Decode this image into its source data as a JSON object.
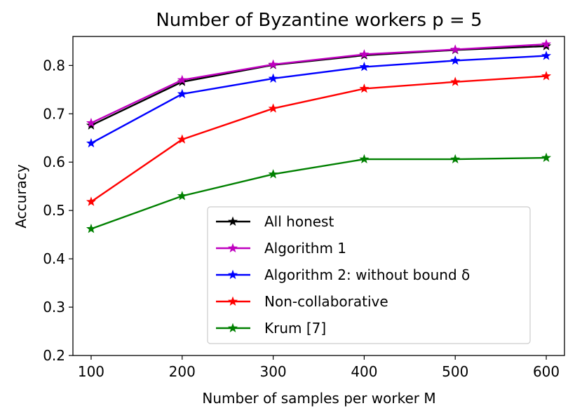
{
  "chart_data": {
    "type": "line",
    "title": "Number of Byzantine workers p = 5",
    "xlabel": "Number of samples per worker M",
    "ylabel": "Accuracy",
    "x": [
      100,
      200,
      300,
      400,
      500,
      600
    ],
    "xticks": [
      "100",
      "200",
      "300",
      "400",
      "500",
      "600"
    ],
    "yticks": [
      "0.2",
      "0.3",
      "0.4",
      "0.5",
      "0.6",
      "0.7",
      "0.8"
    ],
    "xlim": [
      80,
      620
    ],
    "ylim": [
      0.2,
      0.86
    ],
    "legend_position": "lower-right",
    "grid": false,
    "series": [
      {
        "name": "All honest",
        "color": "#000000",
        "marker": "star",
        "values": [
          0.676,
          0.766,
          0.801,
          0.821,
          0.832,
          0.84
        ]
      },
      {
        "name": "Algorithm 1",
        "color": "#bf00bf",
        "marker": "star",
        "values": [
          0.681,
          0.77,
          0.802,
          0.823,
          0.833,
          0.844
        ]
      },
      {
        "name": "Algorithm 2: without bound δ",
        "color": "#0000ff",
        "marker": "star",
        "values": [
          0.639,
          0.741,
          0.773,
          0.797,
          0.81,
          0.82
        ]
      },
      {
        "name": "Non-collaborative",
        "color": "#ff0000",
        "marker": "star",
        "values": [
          0.518,
          0.647,
          0.711,
          0.752,
          0.766,
          0.778
        ]
      },
      {
        "name": "Krum [7]",
        "color": "#008000",
        "marker": "star",
        "values": [
          0.462,
          0.53,
          0.575,
          0.606,
          0.606,
          0.609
        ]
      }
    ]
  }
}
